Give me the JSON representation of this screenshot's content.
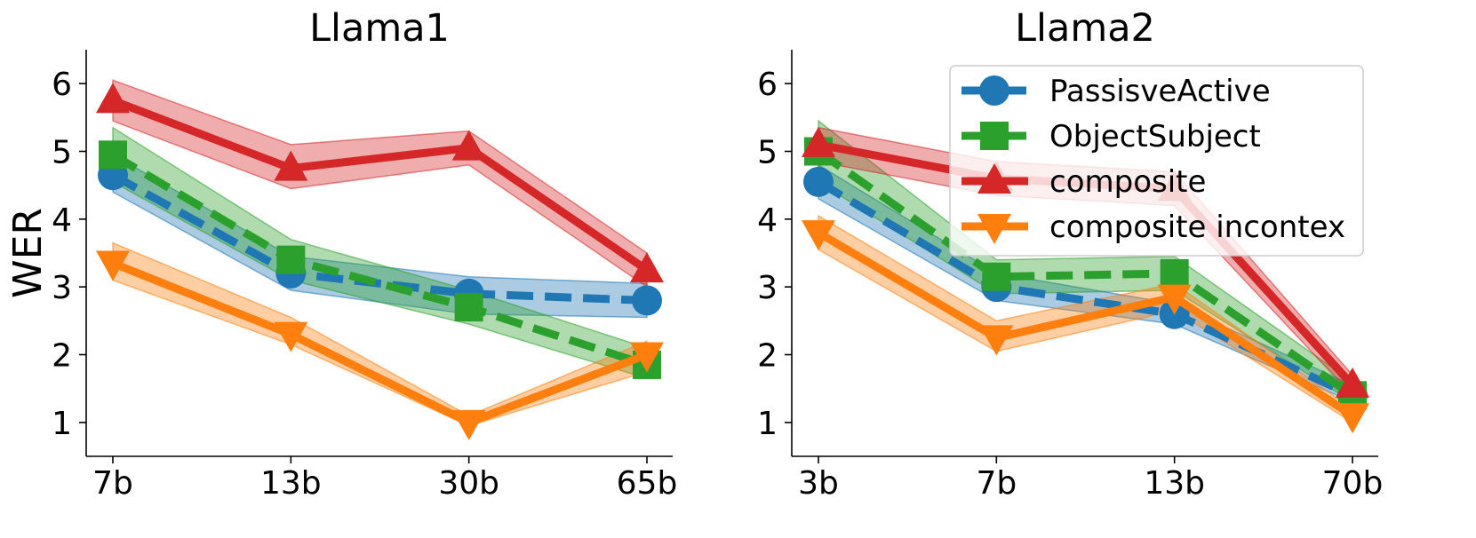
{
  "chart_data": [
    {
      "type": "line",
      "title": "Llama1",
      "xlabel": "",
      "ylabel": "WER",
      "categories": [
        "7b",
        "13b",
        "30b",
        "65b"
      ],
      "ylim": [
        0.5,
        6.5
      ],
      "yticks": [
        1,
        2,
        3,
        4,
        5,
        6
      ],
      "series": [
        {
          "name": "PassisveActive",
          "values": [
            4.65,
            3.2,
            2.9,
            2.8
          ],
          "lower": [
            4.4,
            2.95,
            2.6,
            2.55
          ],
          "upper": [
            4.95,
            3.45,
            3.15,
            3.05
          ],
          "color": "#1f77b4",
          "marker": "circle",
          "dashed": true
        },
        {
          "name": "ObjectSubject",
          "values": [
            4.95,
            3.4,
            2.7,
            1.85
          ],
          "lower": [
            4.55,
            3.1,
            2.45,
            1.65
          ],
          "upper": [
            5.35,
            3.7,
            2.95,
            2.1
          ],
          "color": "#2ca02c",
          "marker": "square",
          "dashed": true
        },
        {
          "name": "composite",
          "values": [
            5.75,
            4.75,
            5.05,
            3.25
          ],
          "lower": [
            5.45,
            4.45,
            4.8,
            3.0
          ],
          "upper": [
            6.05,
            5.1,
            5.3,
            3.5
          ],
          "color": "#d62728",
          "marker": "triangle-up",
          "dashed": false
        },
        {
          "name": "composite incontex",
          "values": [
            3.35,
            2.3,
            1.0,
            2.0
          ],
          "lower": [
            3.1,
            2.15,
            0.95,
            1.75
          ],
          "upper": [
            3.65,
            2.55,
            1.1,
            2.2
          ],
          "color": "#ff7f0e",
          "marker": "triangle-down",
          "dashed": false
        }
      ]
    },
    {
      "type": "line",
      "title": "Llama2",
      "xlabel": "",
      "ylabel": "",
      "categories": [
        "3b",
        "7b",
        "13b",
        "70b"
      ],
      "ylim": [
        0.5,
        6.5
      ],
      "yticks": [
        1,
        2,
        3,
        4,
        5,
        6
      ],
      "legend": "top-right",
      "series": [
        {
          "name": "PassisveActive",
          "values": [
            4.55,
            3.0,
            2.6,
            1.4
          ],
          "lower": [
            4.3,
            2.8,
            2.45,
            1.3
          ],
          "upper": [
            4.8,
            3.2,
            2.75,
            1.55
          ],
          "color": "#1f77b4",
          "marker": "circle",
          "dashed": true
        },
        {
          "name": "ObjectSubject",
          "values": [
            5.0,
            3.15,
            3.2,
            1.4
          ],
          "lower": [
            4.55,
            2.9,
            2.95,
            1.3
          ],
          "upper": [
            5.45,
            3.4,
            3.45,
            1.6
          ],
          "color": "#2ca02c",
          "marker": "square",
          "dashed": true
        },
        {
          "name": "composite",
          "values": [
            5.1,
            4.6,
            4.45,
            1.55
          ],
          "lower": [
            4.85,
            4.35,
            4.2,
            1.4
          ],
          "upper": [
            5.35,
            4.85,
            4.7,
            1.7
          ],
          "color": "#d62728",
          "marker": "triangle-up",
          "dashed": false
        },
        {
          "name": "composite incontex",
          "values": [
            3.8,
            2.25,
            2.85,
            1.1
          ],
          "lower": [
            3.55,
            2.05,
            2.65,
            1.0
          ],
          "upper": [
            4.05,
            2.5,
            3.05,
            1.2
          ],
          "color": "#ff7f0e",
          "marker": "triangle-down",
          "dashed": false
        }
      ]
    }
  ]
}
